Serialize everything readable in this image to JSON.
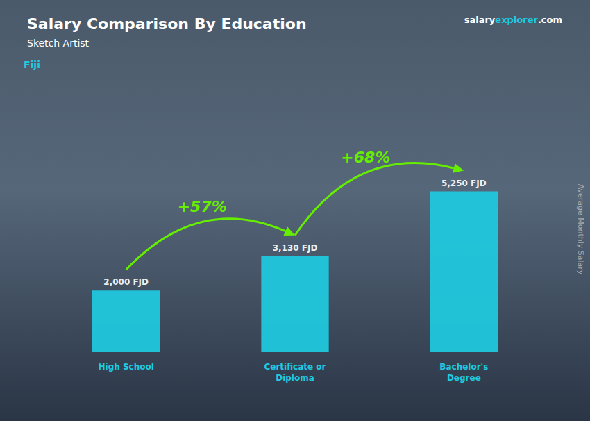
{
  "chart_data": {
    "type": "bar",
    "title": "Salary Comparison By Education",
    "subtitle": "Sketch Artist",
    "ylabel": "Average Monthly Salary",
    "categories": [
      "High School",
      "Certificate or\nDiploma",
      "Bachelor's\nDegree"
    ],
    "values": [
      2000,
      3130,
      5250
    ],
    "value_labels": [
      "2,000 FJD",
      "3,130 FJD",
      "5,250 FJD"
    ],
    "data_labels": true,
    "color": "#1ecbe1",
    "ylim": [
      0,
      7200
    ],
    "yticks": [],
    "tick_labels": "x",
    "grid": false,
    "annotations": [
      {
        "text": "Fiji",
        "color": "#1ecbe1"
      },
      {
        "text": "salary",
        "color": "#ffffff"
      },
      {
        "text": "explorer",
        "color": "#1ecbe1"
      },
      {
        "text": ".com",
        "color": "#ffffff"
      },
      {
        "text": "+57%",
        "color": "#66ee00",
        "arrow": true
      },
      {
        "text": "+68%",
        "color": "#66ee00",
        "arrow": true
      }
    ]
  }
}
